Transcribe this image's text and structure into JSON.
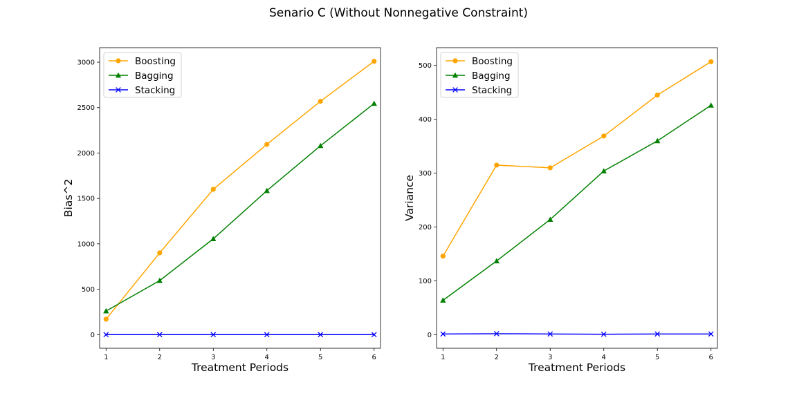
{
  "figure": {
    "title": "Senario C (Without Nonnegative Constraint)"
  },
  "chart_data": [
    {
      "type": "line",
      "title": "",
      "xlabel": "Treatment Periods",
      "ylabel": "Bias^2",
      "x": [
        1,
        2,
        3,
        4,
        5,
        6
      ],
      "xticks": [
        1,
        2,
        3,
        4,
        5,
        6
      ],
      "xlim": [
        0.88,
        6.12
      ],
      "yticks": [
        0,
        500,
        1000,
        1500,
        2000,
        2500,
        3000
      ],
      "ylim": [
        -150,
        3160
      ],
      "grid": false,
      "legend_position": "top-left",
      "series": [
        {
          "name": "Boosting",
          "color": "#ffa500",
          "marker": "circle",
          "values": [
            170,
            900,
            1600,
            2095,
            2570,
            3010
          ]
        },
        {
          "name": "Bagging",
          "color": "#008000",
          "marker": "triangle",
          "values": [
            260,
            595,
            1055,
            1585,
            2080,
            2545
          ]
        },
        {
          "name": "Stacking",
          "color": "#0000ff",
          "marker": "x",
          "values": [
            0,
            0,
            0,
            0,
            0,
            0
          ]
        }
      ]
    },
    {
      "type": "line",
      "title": "",
      "xlabel": "Treatment Periods",
      "ylabel": "Variance",
      "x": [
        1,
        2,
        3,
        4,
        5,
        6
      ],
      "xticks": [
        1,
        2,
        3,
        4,
        5,
        6
      ],
      "xlim": [
        0.88,
        6.12
      ],
      "yticks": [
        0,
        100,
        200,
        300,
        400,
        500
      ],
      "ylim": [
        -25,
        533
      ],
      "grid": false,
      "legend_position": "top-left",
      "series": [
        {
          "name": "Boosting",
          "color": "#ffa500",
          "marker": "circle",
          "values": [
            146,
            315,
            310,
            369,
            445,
            507
          ]
        },
        {
          "name": "Bagging",
          "color": "#008000",
          "marker": "triangle",
          "values": [
            64,
            137,
            214,
            304,
            360,
            426
          ]
        },
        {
          "name": "Stacking",
          "color": "#0000ff",
          "marker": "x",
          "values": [
            1.5,
            2,
            1.5,
            1,
            1.5,
            1.5
          ]
        }
      ]
    }
  ]
}
